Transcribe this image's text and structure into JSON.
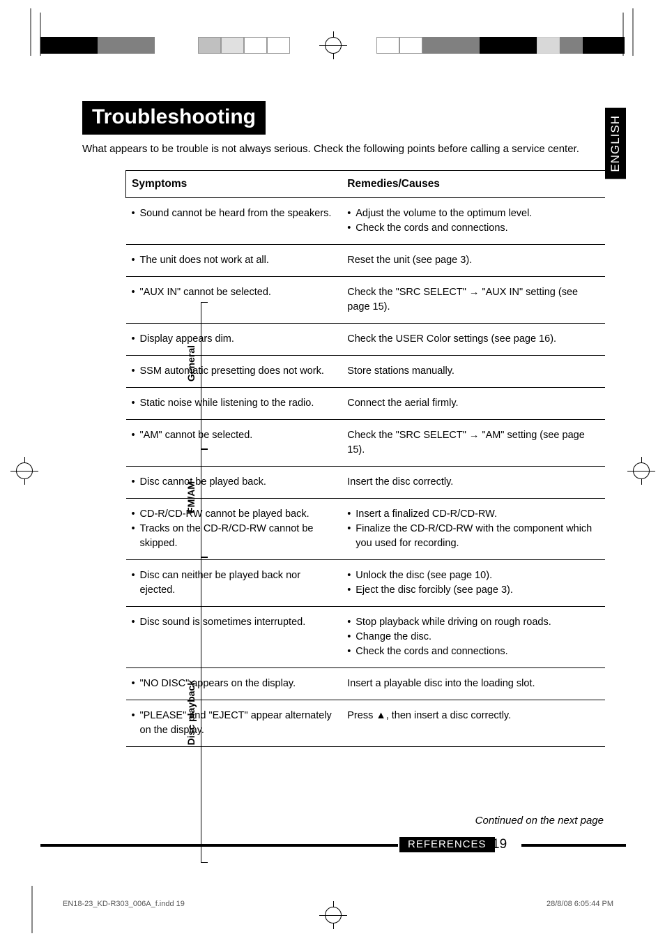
{
  "page": {
    "title": "Troubleshooting",
    "intro": "What appears to be trouble is not always serious. Check the following points before calling a service center.",
    "side_tab": "ENGLISH",
    "continued": "Continued on the next page",
    "footer_ref": "REFERENCES",
    "footer_page": "19",
    "print_left": "EN18-23_KD-R303_006A_f.indd   19",
    "print_right": "28/8/08   6:05:44 PM"
  },
  "table": {
    "header_symptoms": "Symptoms",
    "header_remedies": "Remedies/Causes",
    "groups": [
      {
        "label": "General",
        "rows": [
          {
            "sym": [
              "Sound cannot be heard from the speakers."
            ],
            "rem": [
              "Adjust the volume to the optimum level.",
              "Check the cords and connections."
            ]
          },
          {
            "sym": [
              "The unit does not work at all."
            ],
            "rem_plain": "Reset the unit (see page 3)."
          },
          {
            "sym": [
              "\"AUX IN\" cannot be selected."
            ],
            "rem_plain": "Check the \"SRC SELECT\" → \"AUX IN\" setting (see page 15)."
          },
          {
            "sym": [
              "Display appears dim."
            ],
            "rem_plain": "Check the USER Color settings (see page 16)."
          }
        ]
      },
      {
        "label": "FM/AM",
        "rows": [
          {
            "sym": [
              "SSM automatic presetting does not work."
            ],
            "rem_plain": "Store stations manually."
          },
          {
            "sym": [
              "Static noise while listening to the radio."
            ],
            "rem_plain": "Connect the aerial firmly."
          },
          {
            "sym": [
              "\"AM\" cannot be selected."
            ],
            "rem_plain": "Check the \"SRC SELECT\" → \"AM\" setting (see page 15)."
          }
        ]
      },
      {
        "label": "Disc playback",
        "rows": [
          {
            "sym": [
              "Disc cannot be played back."
            ],
            "rem_plain": "Insert the disc correctly."
          },
          {
            "sym": [
              "CD-R/CD-RW cannot be played back.",
              "Tracks on the CD-R/CD-RW cannot be skipped."
            ],
            "rem": [
              "Insert a finalized CD-R/CD-RW.",
              "Finalize the CD-R/CD-RW with the component which you used for recording."
            ]
          },
          {
            "sym": [
              "Disc can neither be played back nor ejected."
            ],
            "rem": [
              "Unlock the disc (see page 10).",
              "Eject the disc forcibly (see page 3)."
            ]
          },
          {
            "sym": [
              "Disc sound is sometimes interrupted."
            ],
            "rem": [
              "Stop playback while driving on rough roads.",
              "Change the disc.",
              "Check the cords and connections."
            ]
          },
          {
            "sym": [
              "\"NO DISC\" appears on the display."
            ],
            "rem_plain": "Insert a playable disc into the loading slot."
          },
          {
            "sym": [
              "\"PLEASE\" and \"EJECT\" appear alternately on the display."
            ],
            "rem_plain": "Press ▲, then insert a disc correctly."
          }
        ]
      }
    ]
  }
}
